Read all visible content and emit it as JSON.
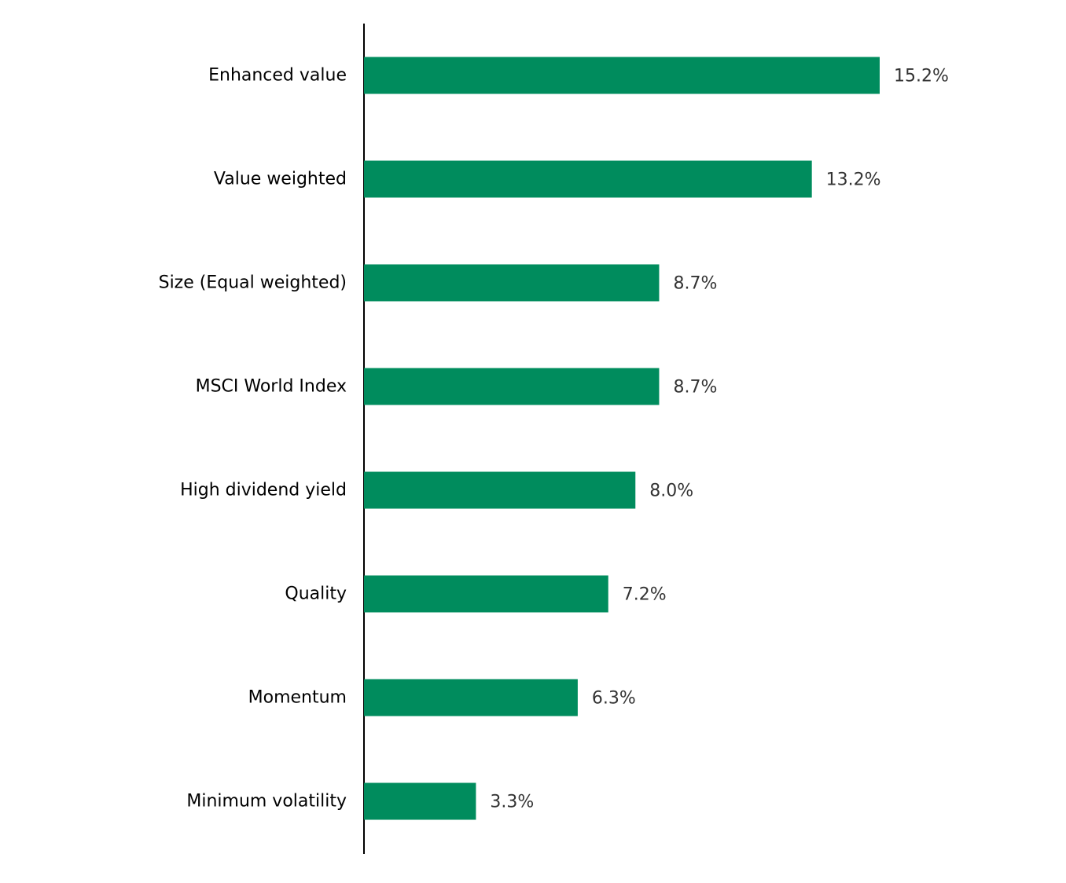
{
  "chart_data": {
    "type": "bar",
    "orientation": "horizontal",
    "categories": [
      "Enhanced value",
      "Value weighted",
      "Size (Equal weighted)",
      "MSCI World Index",
      "High dividend yield",
      "Quality",
      "Momentum",
      "Minimum volatility"
    ],
    "values": [
      15.2,
      13.2,
      8.7,
      8.7,
      8.0,
      7.2,
      6.3,
      3.3
    ],
    "value_labels": [
      "15.2%",
      "13.2%",
      "8.7%",
      "8.7%",
      "8.0%",
      "7.2%",
      "6.3%",
      "3.3%"
    ],
    "title": "",
    "xlabel": "",
    "ylabel": "",
    "xlim": [
      0,
      15.2
    ],
    "grid": false,
    "legend": "none",
    "colors": {
      "bar": "#008C5D",
      "axis": "#000000",
      "category_text": "#000000",
      "value_text": "#333333"
    }
  }
}
